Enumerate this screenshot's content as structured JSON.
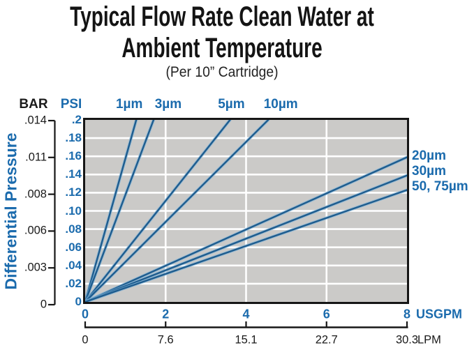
{
  "header": {
    "title_line1": "Typical Flow Rate Clean Water at",
    "title_line2": "Ambient Temperature",
    "subtitle": "(Per 10” Cartridge)"
  },
  "chart_data": {
    "type": "line",
    "title": "Typical Flow Rate Clean Water at Ambient Temperature",
    "subtitle": "(Per 10” Cartridge)",
    "y_axis_title": "Differential Pressure",
    "psi_axis": {
      "header": "PSI",
      "ticks": [
        ".2",
        ".18",
        ".16",
        ".14",
        ".12",
        ".10",
        ".08",
        ".06",
        ".04",
        ".02",
        "0"
      ],
      "range": [
        0,
        0.2
      ],
      "max": 0.2
    },
    "bar_axis": {
      "header": "BAR",
      "ticks": [
        ".014",
        ".011",
        ".008",
        ".006",
        ".003",
        "0"
      ]
    },
    "x_axis": {
      "unit": "USGPM",
      "ticks": [
        "0",
        "2",
        "4",
        "6",
        "8"
      ],
      "values": [
        0,
        2,
        4,
        6,
        8
      ],
      "range": [
        0,
        8
      ],
      "max": 8
    },
    "lpm_axis": {
      "unit": "LPM",
      "ticks": [
        "0",
        "7.6",
        "15.1",
        "22.7",
        "30.3"
      ]
    },
    "grid": "on",
    "series": [
      {
        "name": "1µm",
        "label_side": "top",
        "points_usgpm_psi": [
          [
            0,
            0
          ],
          [
            1.27,
            0.2
          ]
        ]
      },
      {
        "name": "3µm",
        "label_side": "top",
        "points_usgpm_psi": [
          [
            0,
            0
          ],
          [
            1.7,
            0.2
          ]
        ]
      },
      {
        "name": "5µm",
        "label_side": "top",
        "points_usgpm_psi": [
          [
            0,
            0
          ],
          [
            3.6,
            0.2
          ]
        ]
      },
      {
        "name": "10µm",
        "label_side": "top",
        "points_usgpm_psi": [
          [
            0,
            0
          ],
          [
            4.55,
            0.2
          ]
        ]
      },
      {
        "name": "20µm",
        "label_side": "right",
        "points_usgpm_psi": [
          [
            0,
            0
          ],
          [
            8,
            0.159
          ]
        ]
      },
      {
        "name": "30µm",
        "label_side": "right",
        "points_usgpm_psi": [
          [
            0,
            0
          ],
          [
            8,
            0.139
          ]
        ]
      },
      {
        "name": "50, 75µm",
        "label_side": "right",
        "points_usgpm_psi": [
          [
            0,
            0
          ],
          [
            8,
            0.123
          ]
        ]
      }
    ],
    "colors": {
      "label_blue": "#1b6bad",
      "line": "#1e5c8e",
      "line_halo": "rgba(125,178,216,0.6)",
      "plot_bg": "#cbcac8",
      "grid": "#ffffff",
      "axis": "#161616",
      "title_text": "#141414"
    }
  }
}
